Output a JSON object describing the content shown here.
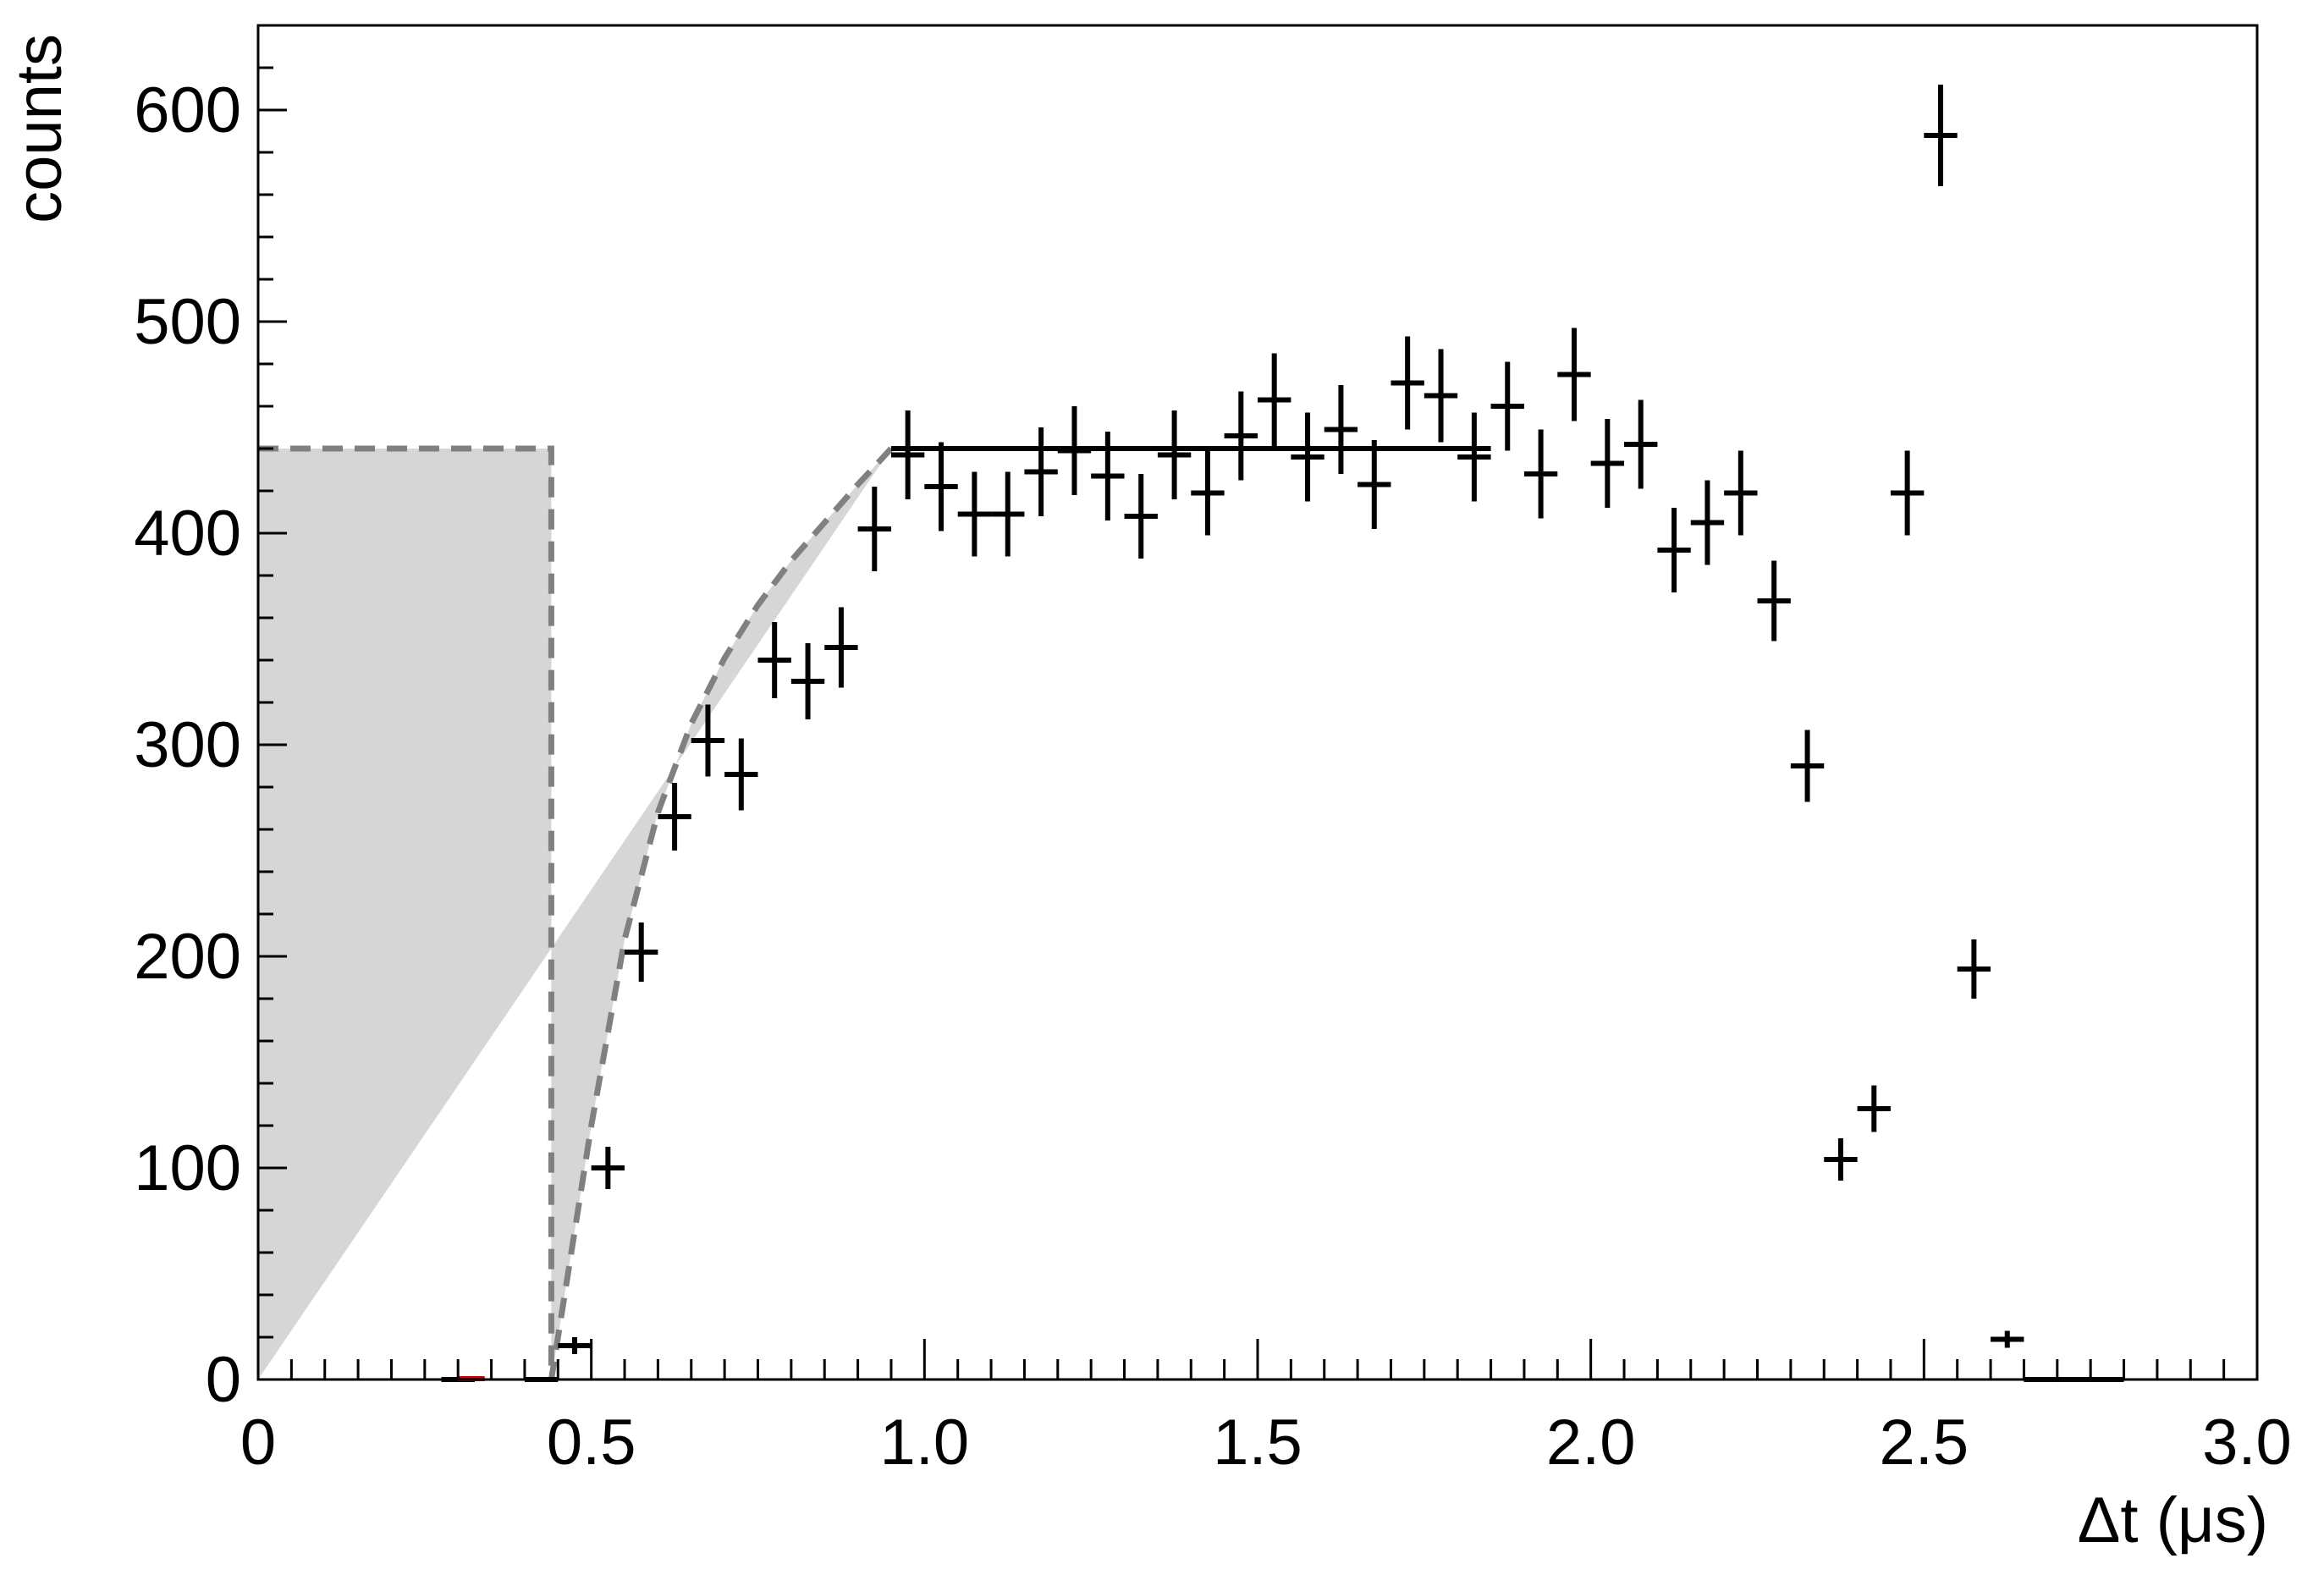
{
  "chart_data": {
    "type": "scatter",
    "xlabel": "Δt (μs)",
    "ylabel": "counts",
    "xlim": [
      0,
      3.0
    ],
    "ylim": [
      0,
      640
    ],
    "x_tick_labels": [
      "0",
      "0.5",
      "1.0",
      "1.5",
      "2.0",
      "2.5",
      "3.0"
    ],
    "y_tick_labels": [
      "0",
      "100",
      "200",
      "300",
      "400",
      "500",
      "600"
    ],
    "bin_width": 0.05,
    "series": [
      {
        "style": "points-with-error-bars",
        "color": "#000000",
        "x": [
          0.3,
          0.425,
          0.475,
          0.525,
          0.575,
          0.625,
          0.675,
          0.725,
          0.775,
          0.825,
          0.875,
          0.925,
          0.975,
          1.025,
          1.075,
          1.125,
          1.175,
          1.225,
          1.275,
          1.325,
          1.375,
          1.425,
          1.475,
          1.525,
          1.575,
          1.625,
          1.675,
          1.725,
          1.775,
          1.825,
          1.875,
          1.925,
          1.975,
          2.025,
          2.075,
          2.125,
          2.175,
          2.225,
          2.275,
          2.325,
          2.375,
          2.425,
          2.475,
          2.525,
          2.575,
          2.625,
          2.675,
          2.725,
          2.775
        ],
        "y": [
          0,
          0,
          16,
          100,
          202,
          266,
          302,
          286,
          340,
          330,
          346,
          402,
          437,
          422,
          409,
          409,
          429,
          439,
          427,
          408,
          437,
          419,
          446,
          463,
          436,
          449,
          423,
          471,
          465,
          436,
          460,
          428,
          475,
          433,
          442,
          392,
          405,
          419,
          368,
          290,
          104,
          128,
          419,
          588,
          194,
          19,
          0,
          0,
          0
        ],
        "yerr": [
          0,
          0,
          4,
          10,
          14,
          16,
          17,
          17,
          18,
          18,
          19,
          20,
          21,
          21,
          20,
          20,
          21,
          21,
          21,
          20,
          21,
          20,
          21,
          22,
          21,
          21,
          21,
          22,
          22,
          21,
          21,
          21,
          22,
          21,
          21,
          20,
          20,
          20,
          19,
          17,
          10,
          11,
          20,
          24,
          14,
          4,
          0,
          0,
          0
        ]
      },
      {
        "style": "horizontal-fit-line",
        "color": "#000000",
        "x": [
          0.95,
          1.85
        ],
        "y": [
          440,
          440
        ]
      },
      {
        "style": "dashed-model-curve-with-shaded-region",
        "color": "#808080",
        "fill": "#d6d6d6",
        "x": [
          0,
          0.44,
          0.44,
          0.5,
          0.55,
          0.6,
          0.65,
          0.7,
          0.75,
          0.8,
          0.85,
          0.9,
          0.95
        ],
        "y": [
          440,
          440,
          0,
          120,
          208,
          268,
          310,
          341,
          366,
          387,
          405,
          423,
          440
        ],
        "plateau": 440
      }
    ],
    "red_marker": {
      "x": 0.32,
      "y": 0,
      "color": "#cc0000"
    },
    "grid": false,
    "legend": "none"
  }
}
